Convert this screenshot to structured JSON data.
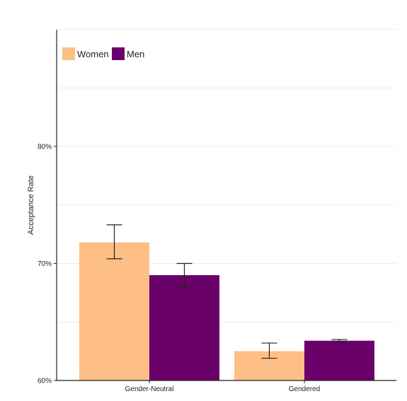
{
  "chart_data": {
    "type": "bar",
    "categories": [
      "Gender-Neutral",
      "Gendered"
    ],
    "series": [
      {
        "name": "Women",
        "color": "#FDBF86",
        "values": [
          71.8,
          62.5
        ],
        "error": [
          [
            70.4,
            73.3
          ],
          [
            61.9,
            63.2
          ]
        ]
      },
      {
        "name": "Men",
        "color": "#6A006A",
        "values": [
          69.0,
          63.4
        ],
        "error": [
          [
            68.0,
            70.0
          ],
          [
            63.3,
            63.5
          ]
        ]
      }
    ],
    "ylabel": "Acceptance Rate",
    "xlabel": "",
    "ylim": [
      60,
      90
    ],
    "yticks": [
      60,
      70,
      80
    ],
    "ytick_labels": [
      "60%",
      "70%",
      "80%"
    ],
    "legend_position": "top-left",
    "grid": "horizontal"
  }
}
